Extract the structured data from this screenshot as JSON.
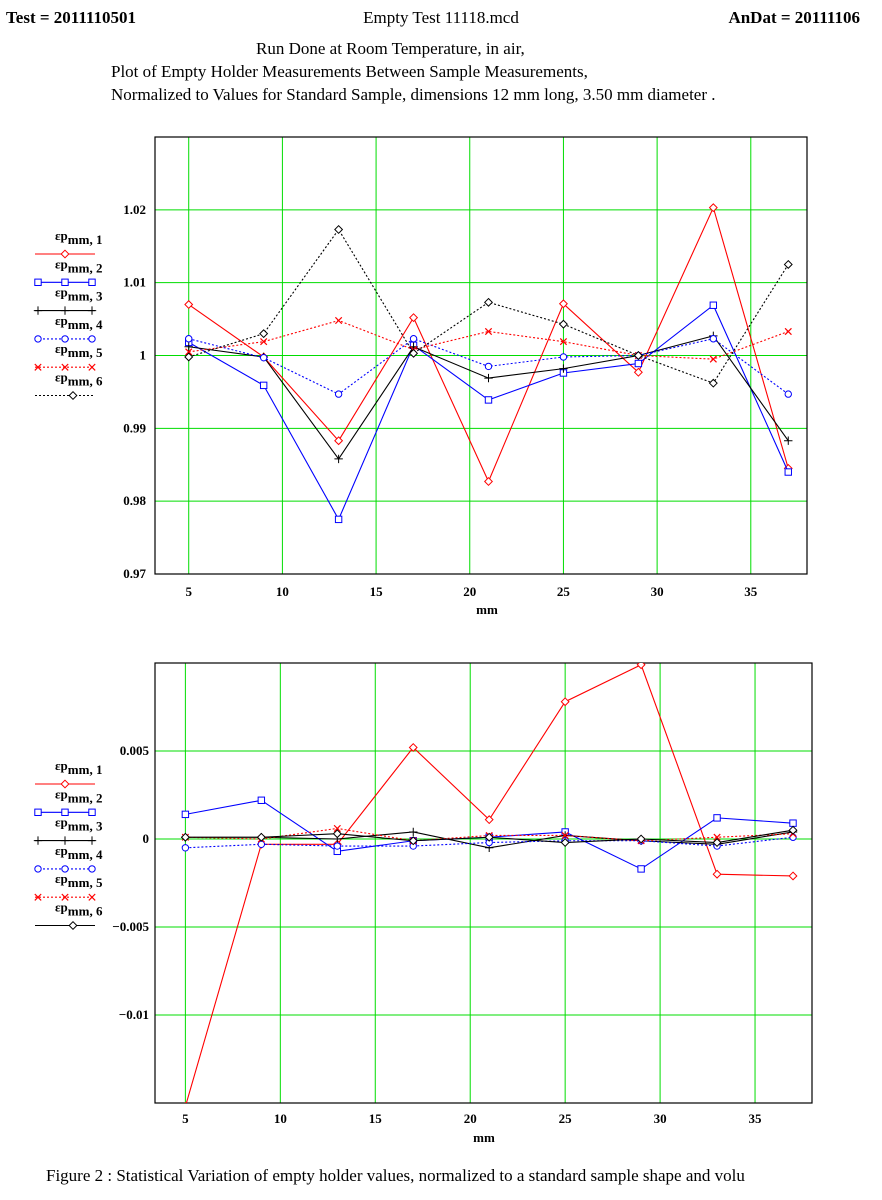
{
  "header": {
    "test_id": "Test = 2011110501",
    "file_name": "Empty Test 11118.mcd",
    "andat": "AnDat = 20111106"
  },
  "description": {
    "line1": "Run Done at Room Temperature, in air,",
    "line2": "Plot of Empty Holder Measurements Between Sample Measurements,",
    "line3": "Normalized to Values for  Standard Sample, dimensions 12 mm long, 3.50 mm diameter ."
  },
  "caption": "Figure 2 :  Statistical Variation of empty holder values, normalized to a standard sample shape and volu",
  "chart_data": [
    {
      "type": "line",
      "xlabel": "mm",
      "ylabel": "",
      "xlim": [
        3.2,
        38
      ],
      "ylim": [
        0.97,
        1.03
      ],
      "x_ticks": [
        5,
        10,
        15,
        20,
        25,
        30,
        35
      ],
      "y_ticks": [
        0.97,
        0.98,
        0.99,
        1,
        1.01,
        1.02
      ],
      "y_tick_labels": [
        "0.97",
        "0.98",
        "0.99",
        "1",
        "1.01",
        "1.02"
      ],
      "grid": true,
      "legend_position": "left",
      "x": [
        5,
        9,
        13,
        17,
        21,
        25,
        29,
        33,
        37
      ],
      "series": [
        {
          "name": "εp",
          "sub": "mm, 1",
          "color": "#ff0000",
          "dash": "",
          "marker": "diamond",
          "values": [
            1.007,
            0.9998,
            0.9883,
            1.0052,
            0.9827,
            1.0071,
            0.9977,
            1.0203,
            0.9845
          ]
        },
        {
          "name": "εp",
          "sub": "mm, 2",
          "color": "#0000ff",
          "dash": "",
          "marker": "square",
          "values": [
            1.0018,
            0.9959,
            0.9775,
            1.0014,
            0.9939,
            0.9976,
            0.9989,
            1.0069,
            0.984
          ]
        },
        {
          "name": "εp",
          "sub": "mm, 3",
          "color": "#000000",
          "dash": "",
          "marker": "plus",
          "values": [
            1.0012,
            0.9998,
            0.9858,
            1.0012,
            0.9969,
            0.9982,
            1.0,
            1.0027,
            0.9883
          ]
        },
        {
          "name": "εp",
          "sub": "mm, 4",
          "color": "#0000ff",
          "dash": "2,2",
          "marker": "circle",
          "values": [
            1.0023,
            0.9997,
            0.9947,
            1.0023,
            0.9985,
            0.9998,
            1.0,
            1.0023,
            0.9947
          ]
        },
        {
          "name": "εp",
          "sub": "mm, 5",
          "color": "#ff0000",
          "dash": "2,2",
          "marker": "x",
          "values": [
            1.0005,
            1.0019,
            1.0048,
            1.0008,
            1.0033,
            1.0019,
            1.0,
            0.9995,
            1.0033
          ]
        },
        {
          "name": "εp",
          "sub": "mm, 6",
          "color": "#000000",
          "dash": "2,2",
          "marker": "diamond",
          "values": [
            0.9998,
            1.003,
            1.0173,
            1.0003,
            1.0073,
            1.0043,
            1.0,
            0.9962,
            1.0125
          ]
        }
      ]
    },
    {
      "type": "line",
      "xlabel": "mm",
      "ylabel": "",
      "xlim": [
        3.4,
        38
      ],
      "ylim": [
        -0.015,
        0.01
      ],
      "x_ticks": [
        5,
        10,
        15,
        20,
        25,
        30,
        35
      ],
      "y_ticks": [
        -0.01,
        -0.005,
        0,
        0.005
      ],
      "y_tick_labels": [
        "−0.01",
        "−0.005",
        "0",
        "0.005"
      ],
      "grid": true,
      "legend_position": "left",
      "x": [
        5,
        9,
        13,
        17,
        21,
        25,
        29,
        33,
        37
      ],
      "series": [
        {
          "name": "εp",
          "sub": "mm, 1",
          "color": "#ff0000",
          "dash": "",
          "marker": "diamond",
          "values": [
            -0.0152,
            -0.0003,
            -0.0003,
            0.0052,
            0.0011,
            0.0078,
            0.0099,
            -0.002,
            -0.0021
          ]
        },
        {
          "name": "εp",
          "sub": "mm, 2",
          "color": "#0000ff",
          "dash": "",
          "marker": "square",
          "values": [
            0.0014,
            0.0022,
            -0.0007,
            -0.0001,
            0.0001,
            0.0004,
            -0.0017,
            0.0012,
            0.0009
          ]
        },
        {
          "name": "εp",
          "sub": "mm, 3",
          "color": "#000000",
          "dash": "",
          "marker": "plus",
          "values": [
            0.0001,
            0.0001,
            0.0,
            0.0004,
            -0.0005,
            0.0002,
            -0.0001,
            -0.0003,
            0.0004
          ]
        },
        {
          "name": "εp",
          "sub": "mm, 4",
          "color": "#0000ff",
          "dash": "2,2",
          "marker": "circle",
          "values": [
            -0.0005,
            -0.0003,
            -0.0004,
            -0.0004,
            -0.0002,
            -0.0001,
            -0.0001,
            -0.0004,
            0.0001
          ]
        },
        {
          "name": "εp",
          "sub": "mm, 5",
          "color": "#ff0000",
          "dash": "2,2",
          "marker": "x",
          "values": [
            0.0001,
            0.0,
            0.0006,
            -0.0001,
            0.0002,
            0.0002,
            -0.0001,
            0.0001,
            0.0003
          ]
        },
        {
          "name": "εp",
          "sub": "mm, 6",
          "color": "#000000",
          "dash": "",
          "marker": "diamond",
          "values": [
            0.0001,
            0.0001,
            0.0003,
            -0.0001,
            0.0001,
            -0.0002,
            0.0,
            -0.0002,
            0.0005
          ]
        }
      ]
    }
  ]
}
